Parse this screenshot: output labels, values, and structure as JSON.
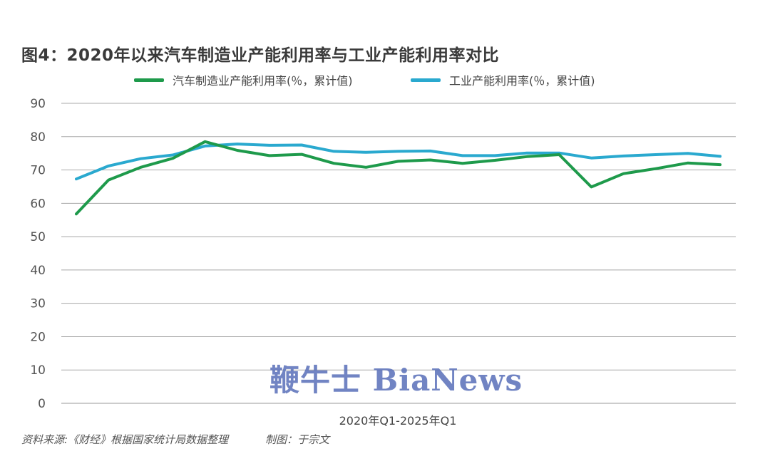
{
  "title": "图4：2020年以来汽车制造业产能利用率与工业产能利用率对比",
  "source": "资料来源:《财经》根据国家统计局数据整理",
  "maker": "制图：于宗文",
  "watermark": "鞭牛士 BiaNews",
  "chart_data": {
    "type": "line",
    "title": "图4：2020年以来汽车制造业产能利用率与工业产能利用率对比",
    "xlabel": "2020年Q1-2025年Q1",
    "ylabel": "",
    "ylim": [
      0,
      90
    ],
    "yticks": [
      "0",
      "10",
      "20",
      "30",
      "40",
      "50",
      "60",
      "70",
      "80",
      "90"
    ],
    "grid": true,
    "legend_position": "top",
    "x": [
      "2020Q1",
      "2020Q2",
      "2020Q3",
      "2020Q4",
      "2021Q1",
      "2021Q2",
      "2021Q3",
      "2021Q4",
      "2022Q1",
      "2022Q2",
      "2022Q3",
      "2022Q4",
      "2023Q1",
      "2023Q2",
      "2023Q3",
      "2023Q4",
      "2024Q1",
      "2024Q2",
      "2024Q3",
      "2024Q4",
      "2025Q1"
    ],
    "series": [
      {
        "name": "汽车制造业产能利用率(％，累计值)",
        "color": "#1e9a4b",
        "values": [
          56.8,
          67.0,
          70.8,
          73.5,
          78.5,
          75.9,
          74.3,
          74.7,
          72.0,
          70.8,
          72.6,
          73.0,
          72.0,
          72.9,
          74.0,
          74.6,
          64.9,
          68.9,
          70.4,
          72.1,
          71.6
        ]
      },
      {
        "name": "工业产能利用率(％，累计值)",
        "color": "#2aa9cf",
        "values": [
          67.3,
          71.2,
          73.4,
          74.5,
          77.2,
          77.8,
          77.4,
          77.5,
          75.6,
          75.3,
          75.6,
          75.7,
          74.3,
          74.3,
          75.1,
          75.1,
          73.6,
          74.2,
          74.6,
          75.0,
          74.1
        ]
      }
    ]
  }
}
